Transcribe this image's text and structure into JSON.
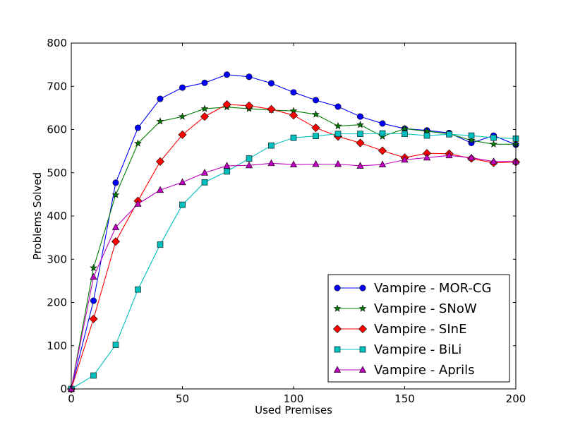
{
  "chart_data": {
    "type": "line",
    "title": "",
    "xlabel": "Used Premises",
    "ylabel": "Problems Solved",
    "xlim": [
      0,
      200
    ],
    "ylim": [
      0,
      800
    ],
    "xticks": [
      0,
      50,
      100,
      150,
      200
    ],
    "yticks": [
      0,
      100,
      200,
      300,
      400,
      500,
      600,
      700,
      800
    ],
    "grid": false,
    "legend_position": "bottom-right",
    "x": [
      0,
      10,
      20,
      30,
      40,
      50,
      60,
      70,
      80,
      90,
      100,
      110,
      120,
      130,
      140,
      150,
      160,
      170,
      180,
      190,
      200
    ],
    "series": [
      {
        "name": "Vampire - MOR-CG",
        "color": "#0000ff",
        "marker": "circle",
        "values": [
          0,
          204,
          477,
          604,
          671,
          697,
          708,
          727,
          722,
          707,
          686,
          668,
          653,
          630,
          614,
          602,
          598,
          592,
          569,
          586,
          565
        ]
      },
      {
        "name": "Vampire - SNoW",
        "color": "#007f00",
        "marker": "star",
        "values": [
          0,
          280,
          449,
          568,
          619,
          630,
          648,
          652,
          648,
          645,
          643,
          635,
          608,
          611,
          584,
          602,
          596,
          590,
          575,
          566,
          566
        ]
      },
      {
        "name": "Vampire - SInE",
        "color": "#ff0000",
        "marker": "diamond",
        "values": [
          0,
          162,
          341,
          435,
          526,
          588,
          630,
          658,
          655,
          647,
          633,
          604,
          584,
          569,
          551,
          535,
          545,
          544,
          533,
          523,
          525
        ]
      },
      {
        "name": "Vampire - BiLi",
        "color": "#00bfbf",
        "marker": "square",
        "values": [
          0,
          31,
          102,
          230,
          334,
          426,
          478,
          503,
          533,
          563,
          581,
          585,
          590,
          590,
          591,
          590,
          586,
          589,
          586,
          581,
          579
        ]
      },
      {
        "name": "Vampire - Aprils",
        "color": "#bf00bf",
        "marker": "triangle",
        "values": [
          0,
          259,
          374,
          428,
          460,
          478,
          500,
          516,
          517,
          522,
          519,
          520,
          520,
          516,
          519,
          530,
          535,
          540,
          535,
          526,
          526
        ]
      }
    ]
  }
}
